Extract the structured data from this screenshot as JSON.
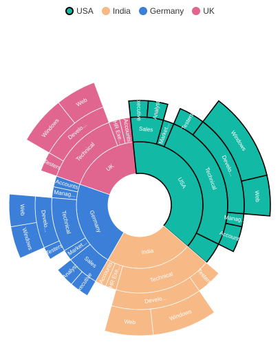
{
  "legend": [
    {
      "name": "USA",
      "color": "#12b9a4",
      "selected": true
    },
    {
      "name": "India",
      "color": "#f7b985",
      "selected": false
    },
    {
      "name": "Germany",
      "color": "#3b7fd8",
      "selected": false
    },
    {
      "name": "UK",
      "color": "#e06690",
      "selected": false
    }
  ],
  "chart_data": {
    "type": "sunburst",
    "selected": "USA",
    "root": [
      {
        "name": "USA",
        "value": 19,
        "color": "#12b9a4",
        "children": [
          {
            "name": "Sales",
            "value": 3,
            "children": [
              {
                "name": "Executive",
                "value": 1.5
              },
              {
                "name": "Analyst",
                "value": 1.5
              }
            ]
          },
          {
            "name": "Marketing",
            "label": "Market...",
            "value": 1
          },
          {
            "name": "Technical",
            "value": 13,
            "children": [
              {
                "name": "Testers",
                "value": 2
              },
              {
                "name": "Developers",
                "label": "Develo...",
                "value": 8,
                "children": [
                  {
                    "name": "Windows",
                    "value": 5.5
                  },
                  {
                    "name": "Web",
                    "value": 2.5
                  }
                ]
              },
              {
                "name": "Management",
                "label": "Manag...",
                "value": 1
              },
              {
                "name": "Accounts",
                "value": 2
              }
            ]
          },
          {
            "name": "x",
            "label": "",
            "value": 2
          }
        ]
      },
      {
        "name": "India",
        "value": 11,
        "color": "#f7b985",
        "children": [
          {
            "name": "Technical",
            "value": 9,
            "children": [
              {
                "name": "Testers",
                "value": 2
              },
              {
                "name": "Developers",
                "label": "Develo...",
                "value": 7,
                "children": [
                  {
                    "name": "Windows",
                    "value": 4
                  },
                  {
                    "name": "Web",
                    "value": 3
                  }
                ]
              }
            ]
          },
          {
            "name": "HR Executives",
            "label": "HR Exe...",
            "value": 1
          },
          {
            "name": "Accounts",
            "value": 1
          }
        ]
      },
      {
        "name": "Germany",
        "value": 11,
        "color": "#3b7fd8",
        "children": [
          {
            "name": "Sales",
            "value": 3,
            "children": [
              {
                "name": "Executive",
                "value": 1.5
              },
              {
                "name": "Analyst",
                "value": 1.5
              }
            ]
          },
          {
            "name": "Marketing",
            "label": "Market...",
            "value": 1
          },
          {
            "name": "Technical",
            "value": 5,
            "children": [
              {
                "name": "Testers",
                "value": 1
              },
              {
                "name": "Developers",
                "label": "Develo...",
                "value": 4,
                "children": [
                  {
                    "name": "Windows",
                    "value": 2
                  },
                  {
                    "name": "Web",
                    "value": 2
                  }
                ]
              }
            ]
          },
          {
            "name": "Management",
            "label": "Manag...",
            "value": 1
          },
          {
            "name": "Accounts",
            "value": 1
          }
        ]
      },
      {
        "name": "UK",
        "value": 9,
        "color": "#e06690",
        "children": [
          {
            "name": "Technical",
            "value": 7,
            "children": [
              {
                "name": "Testers",
                "value": 1.5
              },
              {
                "name": "Developers",
                "label": "Develo...",
                "value": 5.5,
                "children": [
                  {
                    "name": "Windows",
                    "value": 3
                  },
                  {
                    "name": "Web",
                    "value": 2.5
                  }
                ]
              }
            ]
          },
          {
            "name": "HR Executives",
            "label": "HR Exe...",
            "value": 1
          },
          {
            "name": "Accounts",
            "value": 1
          }
        ]
      }
    ]
  }
}
